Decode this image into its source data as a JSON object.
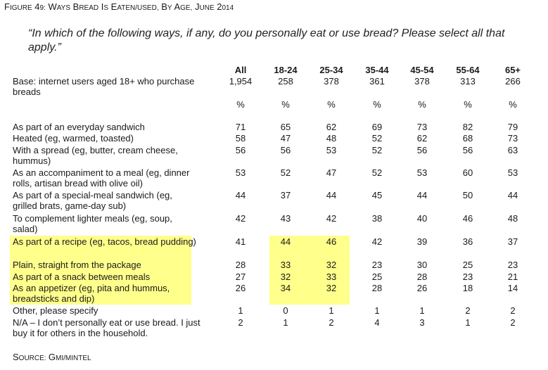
{
  "figure_title": "Figure 49: Ways bread is eaten/used, by age, June 2014",
  "question": "“In which of the following ways, if any, do you personally eat or use bread? Please select all that apply.”",
  "columns": [
    "All",
    "18-24",
    "25-34",
    "35-44",
    "45-54",
    "55-64",
    "65+"
  ],
  "base": {
    "label": "Base: internet users aged 18+ who purchase breads",
    "values": [
      "1,954",
      "258",
      "378",
      "361",
      "378",
      "313",
      "266"
    ]
  },
  "percent_sign": "%",
  "rows": [
    {
      "label": "As part of an everyday sandwich",
      "values": [
        "71",
        "65",
        "62",
        "69",
        "73",
        "82",
        "79"
      ],
      "highlight": false
    },
    {
      "label": "Heated (eg, warmed, toasted)",
      "values": [
        "58",
        "47",
        "48",
        "52",
        "62",
        "68",
        "73"
      ],
      "highlight": false
    },
    {
      "label": "With a spread (eg, butter, cream cheese, hummus)",
      "values": [
        "56",
        "56",
        "53",
        "52",
        "56",
        "56",
        "63"
      ],
      "highlight": false
    },
    {
      "label": "As an accompaniment to a meal (eg, dinner rolls, artisan bread with olive oil)",
      "values": [
        "53",
        "52",
        "47",
        "52",
        "53",
        "60",
        "53"
      ],
      "highlight": false
    },
    {
      "label": "As part of a special-meal sandwich (eg, grilled brats, game-day sub)",
      "values": [
        "44",
        "37",
        "44",
        "45",
        "44",
        "50",
        "44"
      ],
      "highlight": false
    },
    {
      "label": "To complement lighter meals (eg, soup, salad)",
      "values": [
        "42",
        "43",
        "42",
        "38",
        "40",
        "46",
        "48"
      ],
      "highlight": false
    },
    {
      "label": "As part of a recipe (eg, tacos, bread pudding)",
      "values": [
        "41",
        "44",
        "46",
        "42",
        "39",
        "36",
        "37"
      ],
      "highlight": true
    },
    {
      "label": "Plain, straight from the package",
      "values": [
        "28",
        "33",
        "32",
        "23",
        "30",
        "25",
        "23"
      ],
      "highlight": true
    },
    {
      "label": "As part of a snack between meals",
      "values": [
        "27",
        "32",
        "33",
        "25",
        "28",
        "23",
        "21"
      ],
      "highlight": true
    },
    {
      "label": "As an appetizer (eg, pita and hummus, breadsticks and dip)",
      "values": [
        "26",
        "34",
        "32",
        "28",
        "26",
        "18",
        "14"
      ],
      "highlight": true
    },
    {
      "label": "Other, please specify",
      "values": [
        "1",
        "0",
        "1",
        "1",
        "1",
        "2",
        "2"
      ],
      "highlight": false
    },
    {
      "label": "N/A – I don’t personally eat or use bread. I just buy it for others in the household.",
      "values": [
        "2",
        "1",
        "2",
        "4",
        "3",
        "1",
        "2"
      ],
      "highlight": false
    }
  ],
  "source": "Source: GMI/Mintel",
  "colors": {
    "highlight": "#ffff8c"
  }
}
